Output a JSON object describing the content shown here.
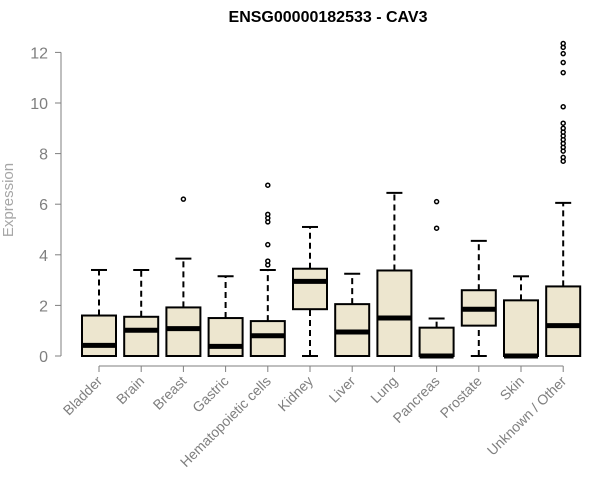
{
  "chart_data": {
    "type": "boxplot",
    "title": "ENSG00000182533 - CAV3",
    "xlabel": "",
    "ylabel": "Expression",
    "ylim": [
      0,
      12
    ],
    "yticks": [
      "0",
      "2",
      "4",
      "6",
      "8",
      "10",
      "12"
    ],
    "grid": false,
    "box_fill": "#ede6cf",
    "box_stroke": "#000000",
    "axis_color": "#7f7f7f",
    "categories": [
      "Bladder",
      "Brain",
      "Breast",
      "Gastric",
      "Hematopoietic cells",
      "Kidney",
      "Liver",
      "Lung",
      "Pancreas",
      "Prostate",
      "Skin",
      "Unknown / Other"
    ],
    "boxes": [
      {
        "q1": 0.0,
        "median": 0.42,
        "q3": 1.6,
        "whisker_low": 0.0,
        "whisker_high": 3.4,
        "outliers": []
      },
      {
        "q1": 0.0,
        "median": 1.02,
        "q3": 1.55,
        "whisker_low": 0.0,
        "whisker_high": 3.4,
        "outliers": []
      },
      {
        "q1": 0.0,
        "median": 1.08,
        "q3": 1.92,
        "whisker_low": 0.0,
        "whisker_high": 3.85,
        "outliers": [
          6.2
        ]
      },
      {
        "q1": 0.0,
        "median": 0.38,
        "q3": 1.5,
        "whisker_low": 0.0,
        "whisker_high": 3.15,
        "outliers": []
      },
      {
        "q1": 0.0,
        "median": 0.8,
        "q3": 1.38,
        "whisker_low": 0.0,
        "whisker_high": 3.4,
        "outliers": [
          3.6,
          3.75,
          4.4,
          5.3,
          5.45,
          5.6,
          6.75
        ]
      },
      {
        "q1": 1.85,
        "median": 2.95,
        "q3": 3.45,
        "whisker_low": 0.0,
        "whisker_high": 5.1,
        "outliers": []
      },
      {
        "q1": 0.0,
        "median": 0.95,
        "q3": 2.05,
        "whisker_low": 0.0,
        "whisker_high": 3.25,
        "outliers": []
      },
      {
        "q1": 0.0,
        "median": 1.5,
        "q3": 3.38,
        "whisker_low": 0.0,
        "whisker_high": 6.45,
        "outliers": []
      },
      {
        "q1": 0.0,
        "median": 0.0,
        "q3": 1.12,
        "whisker_low": 0.0,
        "whisker_high": 1.48,
        "outliers": [
          5.05,
          6.1
        ]
      },
      {
        "q1": 1.2,
        "median": 1.85,
        "q3": 2.6,
        "whisker_low": 0.0,
        "whisker_high": 4.55,
        "outliers": []
      },
      {
        "q1": 0.0,
        "median": 0.0,
        "q3": 2.2,
        "whisker_low": 0.0,
        "whisker_high": 3.15,
        "outliers": []
      },
      {
        "q1": 0.0,
        "median": 1.2,
        "q3": 2.75,
        "whisker_low": 0.0,
        "whisker_high": 6.05,
        "outliers": [
          7.7,
          7.85,
          8.1,
          8.25,
          8.4,
          8.55,
          8.7,
          8.85,
          9.0,
          9.2,
          9.85,
          11.2,
          11.6,
          11.95,
          12.2,
          12.35
        ]
      }
    ]
  }
}
